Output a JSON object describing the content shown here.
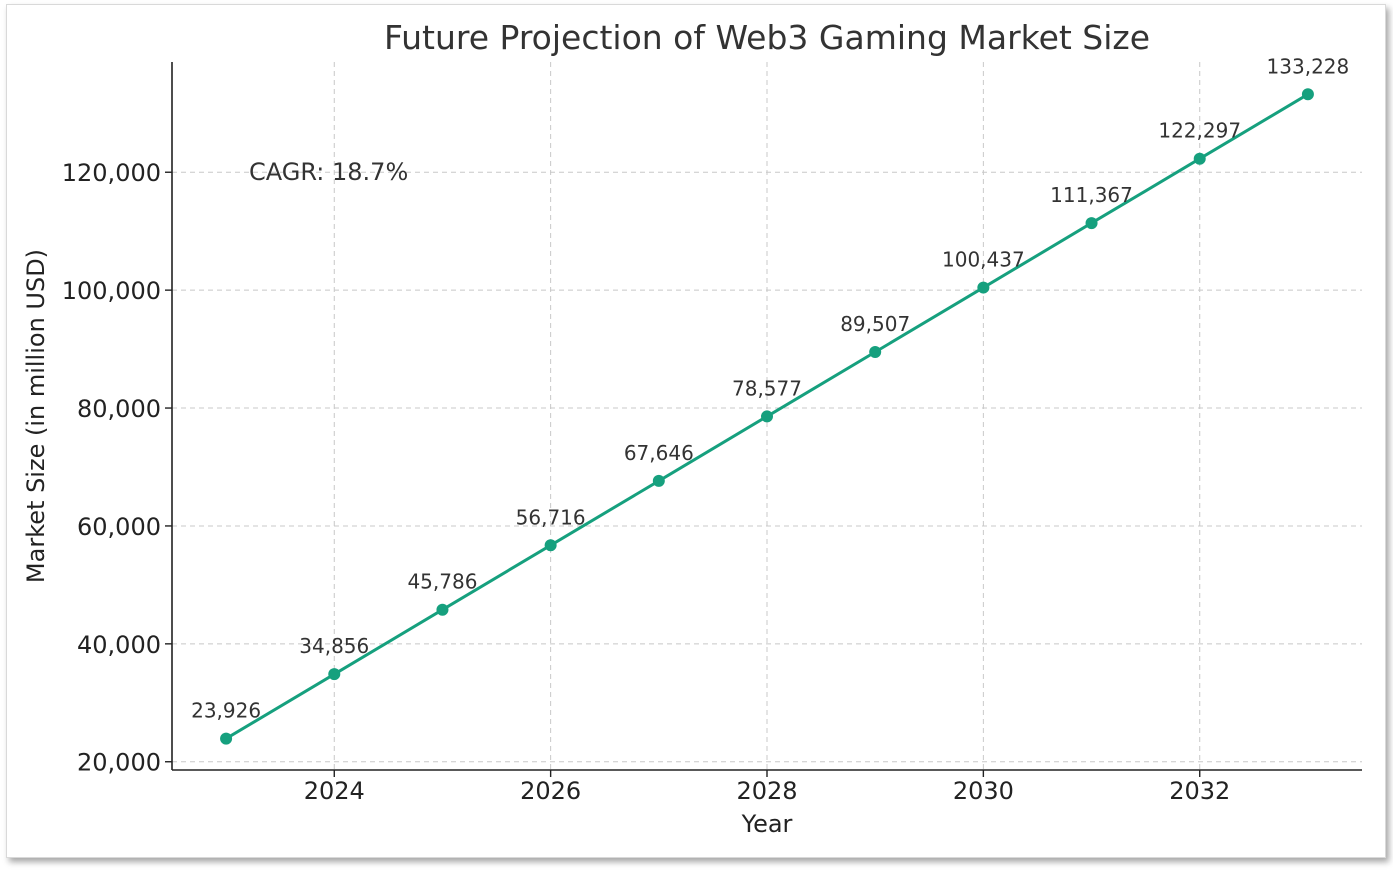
{
  "chart_data": {
    "type": "line",
    "title": "Future Projection of Web3 Gaming Market Size",
    "xlabel": "Year",
    "ylabel": "Market Size (in million USD)",
    "x": [
      2023,
      2024,
      2025,
      2026,
      2027,
      2028,
      2029,
      2030,
      2031,
      2032,
      2033
    ],
    "series": [
      {
        "values": [
          23926,
          34856,
          45786,
          56716,
          67646,
          78577,
          89507,
          100437,
          111367,
          122297,
          133228
        ]
      }
    ],
    "data_labels": [
      "23,926",
      "34,856",
      "45,786",
      "56,716",
      "67,646",
      "78,577",
      "89,507",
      "100,437",
      "111,367",
      "122,297",
      "133,228"
    ],
    "xticks": [
      2024,
      2026,
      2028,
      2030,
      2032
    ],
    "xtick_labels": [
      "2024",
      "2026",
      "2028",
      "2030",
      "2032"
    ],
    "yticks": [
      20000,
      40000,
      60000,
      80000,
      100000,
      120000
    ],
    "ytick_labels": [
      "20,000",
      "40,000",
      "60,000",
      "80,000",
      "100,000",
      "120,000"
    ],
    "xlim": [
      2022.5,
      2033.5
    ],
    "ylim": [
      18600,
      138700
    ],
    "grid": true,
    "color": "#16a07e",
    "annotation": "CAGR: 18.7%"
  }
}
